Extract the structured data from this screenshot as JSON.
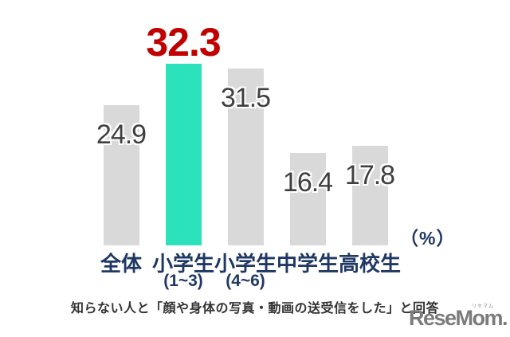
{
  "chart_data": {
    "type": "bar",
    "title": "",
    "unit_label": "（%）",
    "categories": [
      {
        "id": "overall",
        "label": "全体",
        "sublabel": ""
      },
      {
        "id": "elementary-1-3",
        "label": "小学生",
        "sublabel": "(1~3)"
      },
      {
        "id": "elementary-4-6",
        "label": "小学生",
        "sublabel": "(4~6)"
      },
      {
        "id": "junior-high",
        "label": "中学生",
        "sublabel": ""
      },
      {
        "id": "high-school",
        "label": "高校生",
        "sublabel": ""
      }
    ],
    "values": [
      24.9,
      32.3,
      31.5,
      16.4,
      17.8
    ],
    "highlight_index": 1,
    "ylim": [
      0,
      35
    ],
    "grid": false,
    "legend": "none",
    "colors": {
      "bar_default": "#d9d9d9",
      "bar_highlight": "#2be2bc",
      "value_label": "#404040",
      "highlight_value_label": "#c00000",
      "category_label": "#1f3864",
      "unit_label": "#1f3864",
      "caption": "#333333"
    }
  },
  "caption": "知らない人と「顔や身体の写真・動画の送受信をした」と回答",
  "logo": {
    "text": "ReseMom.",
    "ruby": "リセマム"
  }
}
